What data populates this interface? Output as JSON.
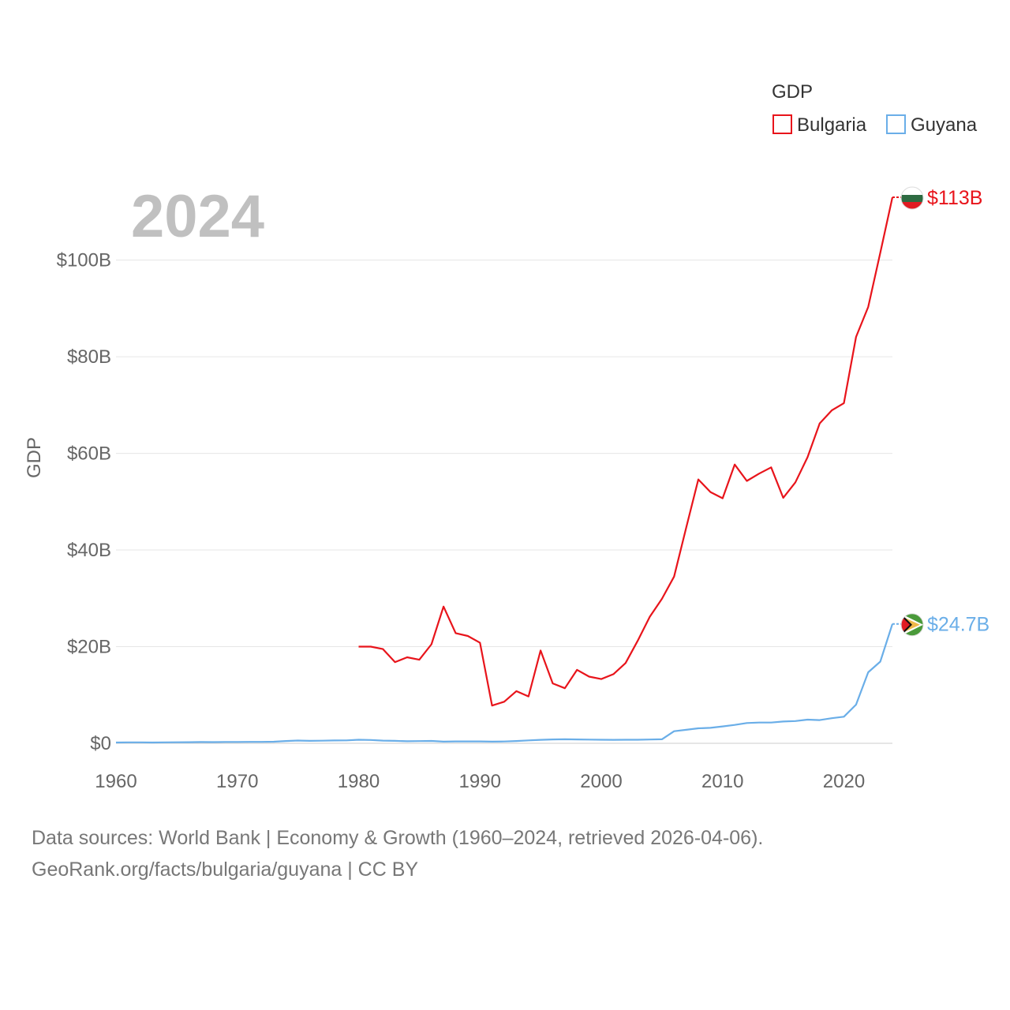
{
  "chart_data": {
    "type": "line",
    "year_label": "2024",
    "ylabel": "GDP",
    "legend": {
      "title": "GDP",
      "position": "top-right"
    },
    "xlim": [
      1960,
      2024
    ],
    "ylim": [
      0,
      113
    ],
    "x_ticks": [
      1960,
      1970,
      1980,
      1990,
      2000,
      2010,
      2020
    ],
    "x_tick_labels": [
      "1960",
      "1970",
      "1980",
      "1990",
      "2000",
      "2010",
      "2020"
    ],
    "y_ticks": [
      0,
      20,
      40,
      60,
      80,
      100
    ],
    "y_tick_labels": [
      "$0",
      "$20B",
      "$40B",
      "$60B",
      "$80B",
      "$100B"
    ],
    "units": "USD billions",
    "series": [
      {
        "name": "Bulgaria",
        "color": "#e8141b",
        "end_label": "$113B",
        "flag_icon": "bulgaria-flag-icon",
        "x": [
          1980,
          1981,
          1982,
          1983,
          1984,
          1985,
          1986,
          1987,
          1988,
          1989,
          1990,
          1991,
          1992,
          1993,
          1994,
          1995,
          1996,
          1997,
          1998,
          1999,
          2000,
          2001,
          2002,
          2003,
          2004,
          2005,
          2006,
          2007,
          2008,
          2009,
          2010,
          2011,
          2012,
          2013,
          2014,
          2015,
          2016,
          2017,
          2018,
          2019,
          2020,
          2021,
          2022,
          2023,
          2024
        ],
        "values": [
          20.0,
          20.0,
          19.5,
          16.8,
          17.8,
          17.3,
          20.5,
          28.3,
          22.8,
          22.2,
          20.8,
          7.8,
          8.6,
          10.8,
          9.7,
          19.2,
          12.4,
          11.4,
          15.2,
          13.8,
          13.3,
          14.3,
          16.6,
          21.2,
          26.2,
          29.9,
          34.5,
          44.6,
          54.6,
          52.0,
          50.7,
          57.7,
          54.3,
          55.8,
          57.1,
          50.8,
          54.0,
          59.2,
          66.2,
          68.9,
          70.4,
          84.1,
          90.3,
          101.5,
          113.0
        ]
      },
      {
        "name": "Guyana",
        "color": "#6aaee8",
        "end_label": "$24.7B",
        "flag_icon": "guyana-flag-icon",
        "x": [
          1960,
          1961,
          1962,
          1963,
          1964,
          1965,
          1966,
          1967,
          1968,
          1969,
          1970,
          1971,
          1972,
          1973,
          1974,
          1975,
          1976,
          1977,
          1978,
          1979,
          1980,
          1981,
          1982,
          1983,
          1984,
          1985,
          1986,
          1987,
          1988,
          1989,
          1990,
          1991,
          1992,
          1993,
          1994,
          1995,
          1996,
          1997,
          1998,
          1999,
          2000,
          2001,
          2002,
          2003,
          2004,
          2005,
          2006,
          2007,
          2008,
          2009,
          2010,
          2011,
          2012,
          2013,
          2014,
          2015,
          2016,
          2017,
          2018,
          2019,
          2020,
          2021,
          2022,
          2023,
          2024
        ],
        "values": [
          0.17,
          0.19,
          0.2,
          0.17,
          0.19,
          0.21,
          0.23,
          0.26,
          0.25,
          0.27,
          0.27,
          0.29,
          0.3,
          0.33,
          0.47,
          0.57,
          0.5,
          0.54,
          0.58,
          0.6,
          0.73,
          0.68,
          0.56,
          0.5,
          0.43,
          0.45,
          0.49,
          0.35,
          0.39,
          0.39,
          0.4,
          0.35,
          0.37,
          0.47,
          0.6,
          0.72,
          0.8,
          0.83,
          0.8,
          0.76,
          0.74,
          0.72,
          0.73,
          0.74,
          0.79,
          0.83,
          2.5,
          2.8,
          3.1,
          3.2,
          3.5,
          3.8,
          4.2,
          4.3,
          4.3,
          4.5,
          4.6,
          4.9,
          4.8,
          5.2,
          5.5,
          8.0,
          14.7,
          16.9,
          24.7
        ]
      }
    ]
  },
  "footer": {
    "line1": "Data sources: World Bank | Economy & Growth (1960–2024, retrieved 2026-04-06).",
    "line2": "GeoRank.org/facts/bulgaria/guyana | CC BY"
  }
}
